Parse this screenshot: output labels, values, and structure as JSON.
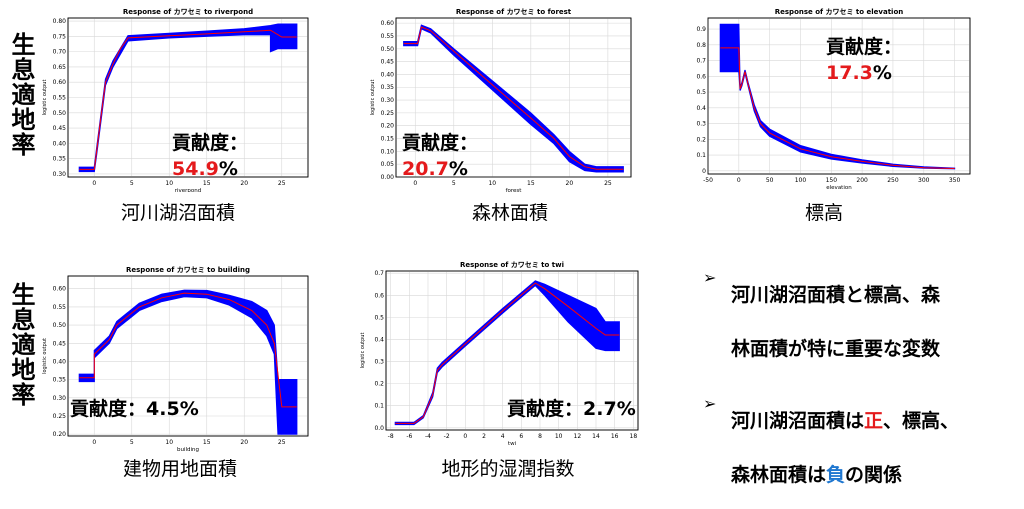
{
  "row_label": "生息適地率",
  "charts": [
    {
      "key": "riverpond",
      "title": "Response of カワセミ to riverpond",
      "xlabel": "riverpond",
      "ylabel": "logistic output",
      "caption": "河川湖沼面積",
      "contrib_label": "貢献度：",
      "contrib_value": "54.9",
      "contrib_unit": "%",
      "contrib_split": true,
      "chart_data": {
        "type": "line",
        "xlim": [
          -3.5,
          28.5
        ],
        "ylim": [
          0.29,
          0.81
        ],
        "xticks": [
          0,
          5,
          10,
          15,
          20,
          25
        ],
        "yticks": [
          0.3,
          0.35,
          0.4,
          0.45,
          0.5,
          0.55,
          0.6,
          0.65,
          0.7,
          0.75,
          0.8
        ],
        "ytick_labels": [
          "0.30",
          "0.35",
          "0.40",
          "0.45",
          "0.50",
          "0.55",
          "0.60",
          "0.65",
          "0.70",
          "0.75",
          "0.80"
        ],
        "mean": [
          [
            -2,
            0.315
          ],
          [
            0,
            0.315
          ],
          [
            0.3,
            0.37
          ],
          [
            0.8,
            0.47
          ],
          [
            1.5,
            0.6
          ],
          [
            2.5,
            0.66
          ],
          [
            3.5,
            0.71
          ],
          [
            4.5,
            0.745
          ],
          [
            10,
            0.752
          ],
          [
            15,
            0.758
          ],
          [
            20,
            0.765
          ],
          [
            23.5,
            0.77
          ],
          [
            25,
            0.748
          ],
          [
            27,
            0.748
          ]
        ],
        "band": [
          [
            -2,
            0.308,
            0.322
          ],
          [
            0,
            0.308,
            0.322
          ],
          [
            0.3,
            0.36,
            0.38
          ],
          [
            1.5,
            0.59,
            0.61
          ],
          [
            2.5,
            0.65,
            0.67
          ],
          [
            4.5,
            0.735,
            0.752
          ],
          [
            10,
            0.745,
            0.76
          ],
          [
            15,
            0.75,
            0.767
          ],
          [
            20,
            0.755,
            0.775
          ],
          [
            23.5,
            0.755,
            0.785
          ],
          [
            23.5,
            0.7,
            0.785
          ],
          [
            24.5,
            0.71,
            0.79
          ],
          [
            27,
            0.71,
            0.79
          ]
        ]
      }
    },
    {
      "key": "forest",
      "title": "Response of カワセミ to forest",
      "xlabel": "forest",
      "ylabel": "logistic output",
      "caption": "森林面積",
      "contrib_label": "貢献度：",
      "contrib_value": "20.7",
      "contrib_unit": "%",
      "contrib_split": true,
      "chart_data": {
        "type": "line",
        "xlim": [
          -2.5,
          28
        ],
        "ylim": [
          0,
          0.62
        ],
        "xticks": [
          0,
          5,
          10,
          15,
          20,
          25
        ],
        "yticks": [
          0,
          0.05,
          0.1,
          0.15,
          0.2,
          0.25,
          0.3,
          0.35,
          0.4,
          0.45,
          0.5,
          0.55,
          0.6
        ],
        "ytick_labels": [
          "0.00",
          "0.05",
          "0.10",
          "0.15",
          "0.20",
          "0.25",
          "0.30",
          "0.35",
          "0.40",
          "0.45",
          "0.50",
          "0.55",
          "0.60"
        ],
        "mean": [
          [
            -1.5,
            0.52
          ],
          [
            0.3,
            0.52
          ],
          [
            0.8,
            0.585
          ],
          [
            2,
            0.57
          ],
          [
            5,
            0.49
          ],
          [
            10,
            0.36
          ],
          [
            15,
            0.23
          ],
          [
            18,
            0.15
          ],
          [
            20,
            0.08
          ],
          [
            22,
            0.04
          ],
          [
            23.5,
            0.03
          ],
          [
            27,
            0.03
          ]
        ],
        "band": [
          [
            -1.5,
            0.512,
            0.528
          ],
          [
            0.3,
            0.512,
            0.528
          ],
          [
            0.8,
            0.578,
            0.592
          ],
          [
            2,
            0.562,
            0.578
          ],
          [
            5,
            0.475,
            0.5
          ],
          [
            10,
            0.34,
            0.375
          ],
          [
            15,
            0.205,
            0.25
          ],
          [
            18,
            0.13,
            0.165
          ],
          [
            20,
            0.06,
            0.1
          ],
          [
            22,
            0.025,
            0.05
          ],
          [
            23.5,
            0.02,
            0.04
          ],
          [
            27,
            0.02,
            0.04
          ]
        ]
      }
    },
    {
      "key": "elevation",
      "title": "Response of カワセミ to elevation",
      "xlabel": "elevation",
      "ylabel": "logistic output",
      "caption": "標高",
      "contrib_label": "貢献度：",
      "contrib_value": "17.3",
      "contrib_unit": "%",
      "contrib_split": true,
      "chart_data": {
        "type": "line",
        "xlim": [
          -50,
          375
        ],
        "ylim": [
          -0.02,
          0.97
        ],
        "xticks": [
          -50,
          0,
          50,
          100,
          150,
          200,
          250,
          300,
          350
        ],
        "yticks": [
          0,
          0.1,
          0.2,
          0.3,
          0.4,
          0.5,
          0.6,
          0.7,
          0.8,
          0.9
        ],
        "ytick_labels": [
          "0",
          "0.1",
          "0.2",
          "0.3",
          "0.4",
          "0.5",
          "0.6",
          "0.7",
          "0.8",
          "0.9"
        ],
        "mean": [
          [
            -30,
            0.78
          ],
          [
            0,
            0.78
          ],
          [
            2,
            0.52
          ],
          [
            5,
            0.55
          ],
          [
            10,
            0.63
          ],
          [
            15,
            0.55
          ],
          [
            25,
            0.4
          ],
          [
            35,
            0.3
          ],
          [
            50,
            0.24
          ],
          [
            100,
            0.14
          ],
          [
            150,
            0.09
          ],
          [
            200,
            0.06
          ],
          [
            250,
            0.035
          ],
          [
            300,
            0.02
          ],
          [
            350,
            0.015
          ]
        ],
        "band": [
          [
            -30,
            0.63,
            0.93
          ],
          [
            0,
            0.63,
            0.93
          ],
          [
            2,
            0.51,
            0.53
          ],
          [
            5,
            0.54,
            0.56
          ],
          [
            10,
            0.62,
            0.64
          ],
          [
            15,
            0.54,
            0.56
          ],
          [
            25,
            0.38,
            0.42
          ],
          [
            35,
            0.28,
            0.32
          ],
          [
            50,
            0.22,
            0.265
          ],
          [
            100,
            0.12,
            0.16
          ],
          [
            150,
            0.075,
            0.105
          ],
          [
            200,
            0.05,
            0.07
          ],
          [
            250,
            0.028,
            0.042
          ],
          [
            300,
            0.017,
            0.025
          ],
          [
            350,
            0.013,
            0.017
          ]
        ]
      }
    },
    {
      "key": "building",
      "title": "Response of カワセミ to building",
      "xlabel": "building",
      "ylabel": "logistic output",
      "caption": "建物用地面積",
      "contrib_label": "貢献度：",
      "contrib_value": "4.5",
      "contrib_unit": "%",
      "contrib_split": false,
      "chart_data": {
        "type": "line",
        "xlim": [
          -3.5,
          28.5
        ],
        "ylim": [
          0.195,
          0.635
        ],
        "xticks": [
          0,
          5,
          10,
          15,
          20,
          25
        ],
        "yticks": [
          0.2,
          0.25,
          0.3,
          0.35,
          0.4,
          0.45,
          0.5,
          0.55,
          0.6
        ],
        "ytick_labels": [
          "0.20",
          "0.25",
          "0.30",
          "0.35",
          "0.40",
          "0.45",
          "0.50",
          "0.55",
          "0.60"
        ],
        "mean": [
          [
            -2,
            0.355
          ],
          [
            0,
            0.355
          ],
          [
            0,
            0.42
          ],
          [
            2,
            0.46
          ],
          [
            3,
            0.5
          ],
          [
            6,
            0.55
          ],
          [
            9,
            0.575
          ],
          [
            12,
            0.588
          ],
          [
            15,
            0.585
          ],
          [
            18,
            0.57
          ],
          [
            21,
            0.54
          ],
          [
            23,
            0.5
          ],
          [
            24,
            0.45
          ],
          [
            25,
            0.275
          ],
          [
            27,
            0.275
          ]
        ],
        "band": [
          [
            -2,
            0.345,
            0.365
          ],
          [
            0,
            0.345,
            0.365
          ],
          [
            0,
            0.41,
            0.43
          ],
          [
            2,
            0.45,
            0.47
          ],
          [
            3,
            0.49,
            0.51
          ],
          [
            6,
            0.54,
            0.56
          ],
          [
            9,
            0.565,
            0.585
          ],
          [
            12,
            0.578,
            0.596
          ],
          [
            15,
            0.575,
            0.595
          ],
          [
            18,
            0.555,
            0.582
          ],
          [
            21,
            0.52,
            0.565
          ],
          [
            23,
            0.47,
            0.54
          ],
          [
            24,
            0.42,
            0.5
          ],
          [
            24.5,
            0.2,
            0.35
          ],
          [
            27,
            0.2,
            0.35
          ]
        ]
      }
    },
    {
      "key": "twi",
      "title": "Response of カワセミ to twi",
      "xlabel": "twi",
      "ylabel": "logistic output",
      "caption": "地形的湿潤指数",
      "contrib_label": "貢献度：",
      "contrib_value": "2.7",
      "contrib_unit": "%",
      "contrib_split": false,
      "chart_data": {
        "type": "line",
        "xlim": [
          -8.5,
          18.5
        ],
        "ylim": [
          -0.01,
          0.71
        ],
        "xticks": [
          -8,
          -6,
          -4,
          -2,
          0,
          2,
          4,
          6,
          8,
          10,
          12,
          14,
          16,
          18
        ],
        "yticks": [
          0,
          0.1,
          0.2,
          0.3,
          0.4,
          0.5,
          0.6,
          0.7
        ],
        "ytick_labels": [
          "0.0",
          "0.1",
          "0.2",
          "0.3",
          "0.4",
          "0.5",
          "0.6",
          "0.7"
        ],
        "mean": [
          [
            -7.5,
            0.02
          ],
          [
            -5.5,
            0.02
          ],
          [
            -4.5,
            0.05
          ],
          [
            -3.5,
            0.15
          ],
          [
            -3,
            0.26
          ],
          [
            -2.5,
            0.285
          ],
          [
            0,
            0.38
          ],
          [
            4,
            0.53
          ],
          [
            7.5,
            0.655
          ],
          [
            8.5,
            0.63
          ],
          [
            11,
            0.55
          ],
          [
            14,
            0.45
          ],
          [
            15,
            0.42
          ],
          [
            16.5,
            0.42
          ]
        ],
        "band": [
          [
            -7.5,
            0.015,
            0.025
          ],
          [
            -5.5,
            0.015,
            0.025
          ],
          [
            -4.5,
            0.045,
            0.055
          ],
          [
            -3.5,
            0.14,
            0.16
          ],
          [
            -3,
            0.25,
            0.27
          ],
          [
            -2.5,
            0.275,
            0.295
          ],
          [
            0,
            0.37,
            0.39
          ],
          [
            4,
            0.52,
            0.54
          ],
          [
            7.5,
            0.645,
            0.665
          ],
          [
            8.5,
            0.6,
            0.65
          ],
          [
            11,
            0.48,
            0.6
          ],
          [
            14,
            0.36,
            0.54
          ],
          [
            15,
            0.35,
            0.48
          ],
          [
            16.5,
            0.35,
            0.48
          ]
        ]
      }
    }
  ],
  "bullets": [
    {
      "lines": [
        [
          {
            "t": "河川湖沼面積と標高、森"
          }
        ],
        [
          {
            "t": "林面積が特に重要な変数"
          }
        ]
      ]
    },
    {
      "lines": [
        [
          {
            "t": "河川湖沼面積は"
          },
          {
            "t": "正",
            "c": "pos"
          },
          {
            "t": "、標高、"
          }
        ],
        [
          {
            "t": "森林面積は"
          },
          {
            "t": "負",
            "c": "neg"
          },
          {
            "t": "の関係"
          }
        ]
      ]
    }
  ],
  "bullet_arrow": "➢",
  "colors": {
    "band": "#0000ff",
    "mean": "#ff0000",
    "highlight_red": "#e41a1c",
    "highlight_blue": "#1f77d0"
  }
}
